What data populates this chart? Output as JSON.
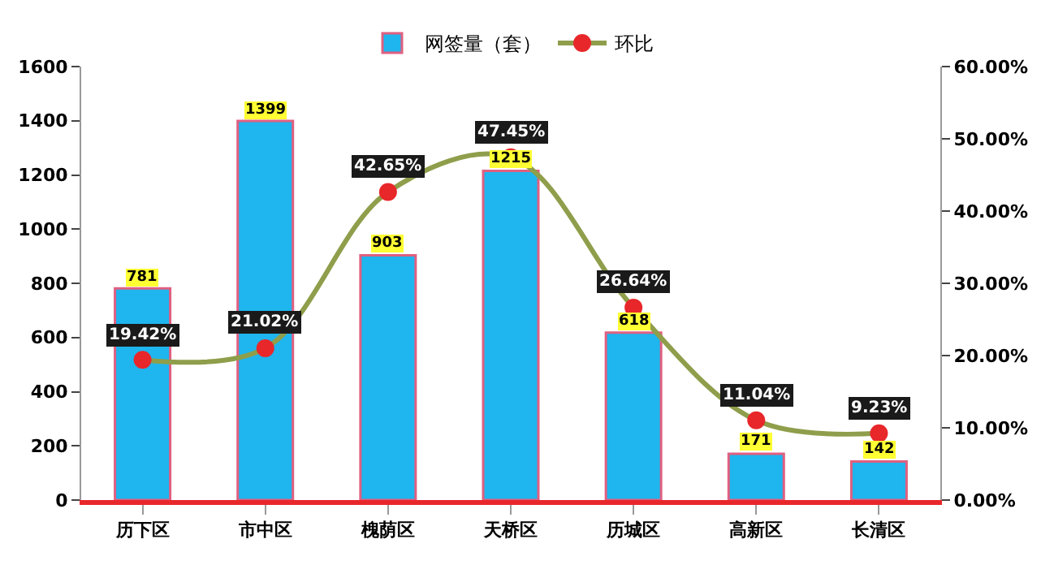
{
  "chart_data": {
    "type": "bar",
    "categories": [
      "历下区",
      "市中区",
      "槐荫区",
      "天桥区",
      "历城区",
      "高新区",
      "长清区"
    ],
    "series": [
      {
        "name": "网签量（套）",
        "color": "#1fb5ee",
        "values": [
          781,
          1399,
          903,
          1215,
          618,
          171,
          142
        ],
        "value_labels": [
          "781",
          "1399",
          "903",
          "1215",
          "618",
          "171",
          "142"
        ]
      },
      {
        "name": "环比",
        "type": "line",
        "axis": "y2",
        "color": "#8f9e4b",
        "marker": "circle",
        "values": [
          19.42,
          21.02,
          42.65,
          47.45,
          26.64,
          11.04,
          9.23
        ],
        "value_labels": [
          "19.42%",
          "21.02%",
          "42.65%",
          "47.45%",
          "26.64%",
          "11.04%",
          "9.23%"
        ]
      }
    ],
    "ylim": [
      0,
      1600
    ],
    "yticks": [
      0,
      200,
      400,
      600,
      800,
      1000,
      1200,
      1400,
      1600
    ],
    "y2lim": [
      0,
      60
    ],
    "y2ticks": [
      {
        "value": 0,
        "label": "0.00%"
      },
      {
        "value": 10,
        "label": "10.00%"
      },
      {
        "value": 20,
        "label": "20.00%"
      },
      {
        "value": 30,
        "label": "30.00%"
      },
      {
        "value": 40,
        "label": "40.00%"
      },
      {
        "value": 50,
        "label": "50.00%"
      },
      {
        "value": 60,
        "label": "60.00%"
      }
    ],
    "legend": "top"
  }
}
